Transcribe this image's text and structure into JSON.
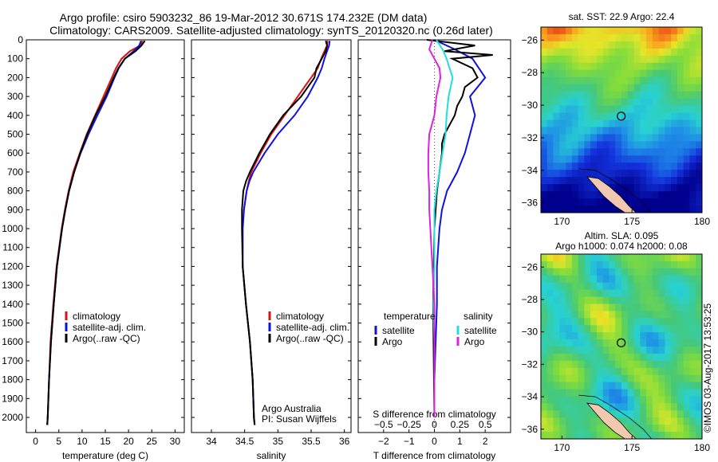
{
  "header": {
    "line1": "Argo profile: csiro 5903232_86 19-Mar-2012 30.671S 174.232E (DM data)",
    "line2": "Climatology: CARS2009. Satellite-adjusted climatology: synTS_20120320.nc (0.26d later)"
  },
  "side_text": "©IMOS 03-Aug-2017 13:53:25",
  "credit": {
    "line1": "Argo Australia",
    "line2": "PI: Susan Wijffels"
  },
  "colors": {
    "climatology": "#dd1111",
    "satellite": "#1111dd",
    "argo": "#000000",
    "sal_sat": "#22dddd",
    "sal_argo": "#dd22dd",
    "dotted_zero": "#555555"
  },
  "chart_data": [
    {
      "type": "line",
      "xlabel": "temperature (deg C)",
      "ylabel": "",
      "xlim": [
        -2,
        32
      ],
      "ylim": [
        2080,
        0
      ],
      "xticks": [
        0,
        5,
        10,
        15,
        20,
        25,
        30
      ],
      "yticks": [
        0,
        100,
        200,
        300,
        400,
        500,
        600,
        700,
        800,
        900,
        1000,
        1100,
        1200,
        1300,
        1400,
        1500,
        1600,
        1700,
        1800,
        1900,
        2000
      ],
      "legend": [
        "climatology",
        "satellite-adj. clim.",
        "Argo(..raw -QC)"
      ],
      "legend_position": "middle",
      "series": [
        {
          "name": "climatology",
          "depth": [
            5,
            30,
            60,
            100,
            150,
            200,
            300,
            400,
            500,
            600,
            700,
            800,
            900,
            1000,
            1200,
            1400,
            1600,
            1800,
            2000,
            2040
          ],
          "values": [
            23.0,
            22.5,
            20.3,
            18.5,
            17.3,
            16.4,
            14.6,
            12.8,
            11.0,
            9.5,
            8.1,
            7.1,
            6.3,
            5.6,
            4.5,
            3.8,
            3.2,
            2.9,
            2.6,
            2.5
          ]
        },
        {
          "name": "satellite-adj. clim.",
          "depth": [
            5,
            30,
            60,
            100,
            150,
            200,
            300,
            400,
            500,
            600,
            700,
            800,
            900,
            1000,
            1200,
            1400,
            1600,
            1800,
            2000,
            2040
          ],
          "values": [
            22.7,
            22.3,
            21.1,
            19.2,
            17.9,
            17.0,
            15.3,
            13.3,
            11.4,
            9.7,
            8.3,
            7.2,
            6.4,
            5.7,
            4.6,
            3.9,
            3.3,
            2.9,
            2.6,
            2.5
          ]
        },
        {
          "name": "Argo(..raw -QC)",
          "depth": [
            5,
            30,
            60,
            100,
            150,
            200,
            300,
            400,
            500,
            600,
            700,
            800,
            900,
            1000,
            1200,
            1400,
            1600,
            1800,
            2000,
            2040
          ],
          "values": [
            23.5,
            22.8,
            21.5,
            19.2,
            17.8,
            16.8,
            15.0,
            12.9,
            11.1,
            9.6,
            8.3,
            7.2,
            6.4,
            5.7,
            4.6,
            3.9,
            3.3,
            2.9,
            2.6,
            2.5
          ]
        }
      ]
    },
    {
      "type": "line",
      "xlabel": "salinity",
      "ylabel": "",
      "xlim": [
        33.7,
        36.1
      ],
      "ylim": [
        2080,
        0
      ],
      "xticks": [
        34,
        34.5,
        35,
        35.5,
        36
      ],
      "legend": [
        "climatology",
        "satellite-adj. clim.",
        "Argo(..raw -QC)"
      ],
      "legend_position": "middle",
      "series": [
        {
          "name": "climatology",
          "depth": [
            5,
            30,
            60,
            100,
            150,
            200,
            300,
            400,
            500,
            600,
            700,
            750,
            800,
            900,
            1000,
            1200,
            1400,
            1600,
            1800,
            2000,
            2040
          ],
          "values": [
            35.75,
            35.74,
            35.7,
            35.65,
            35.6,
            35.5,
            35.3,
            35.1,
            34.9,
            34.74,
            34.6,
            34.56,
            34.53,
            34.49,
            34.47,
            34.47,
            34.52,
            34.58,
            34.62,
            34.64,
            34.65
          ]
        },
        {
          "name": "satellite-adj. clim.",
          "depth": [
            5,
            30,
            60,
            100,
            150,
            200,
            300,
            400,
            500,
            600,
            700,
            750,
            800,
            900,
            1000,
            1200,
            1400,
            1600,
            1800,
            2000,
            2040
          ],
          "values": [
            35.78,
            35.77,
            35.74,
            35.7,
            35.66,
            35.6,
            35.45,
            35.25,
            35.0,
            34.8,
            34.63,
            34.57,
            34.53,
            34.49,
            34.47,
            34.47,
            34.52,
            34.58,
            34.62,
            34.64,
            34.65
          ]
        },
        {
          "name": "Argo(..raw -QC)",
          "depth": [
            5,
            30,
            60,
            100,
            150,
            200,
            300,
            400,
            500,
            600,
            700,
            750,
            800,
            900,
            1000,
            1200,
            1400,
            1600,
            1800,
            2000,
            2040
          ],
          "values": [
            35.72,
            35.74,
            35.72,
            35.66,
            35.58,
            35.55,
            35.35,
            35.08,
            34.88,
            34.72,
            34.58,
            34.52,
            34.48,
            34.46,
            34.46,
            34.47,
            34.52,
            34.58,
            34.62,
            34.64,
            34.65
          ]
        }
      ]
    },
    {
      "type": "line",
      "xlabel": "T difference from climatology",
      "xlabel_top": "S difference from climatology",
      "xlim": [
        -3,
        3
      ],
      "ylim": [
        2080,
        0
      ],
      "xticks_T": [
        -2,
        -1,
        0,
        1,
        2
      ],
      "xticks_S": [
        -0.5,
        -0.25,
        0,
        0.25,
        0.5
      ],
      "legend_temperature": {
        "title": "temperature",
        "items": [
          "satellite",
          "Argo"
        ]
      },
      "legend_salinity": {
        "title": "salinity",
        "items": [
          "satellite",
          "Argo"
        ]
      },
      "series": [
        {
          "name": "temperature satellite",
          "depth": [
            0,
            50,
            100,
            200,
            300,
            400,
            500,
            600,
            700,
            800,
            900,
            1000,
            1200,
            1400,
            1600,
            1800,
            2000
          ],
          "values": [
            0.0,
            0.8,
            1.5,
            2.0,
            1.4,
            1.6,
            1.4,
            1.2,
            0.9,
            0.5,
            0.3,
            0.2,
            0.1,
            0.1,
            0.05,
            0.0,
            0.0
          ]
        },
        {
          "name": "temperature Argo",
          "depth": [
            0,
            30,
            60,
            80,
            100,
            150,
            200,
            250,
            300,
            350,
            400,
            450,
            500,
            550,
            600,
            700,
            800,
            1000,
            1400,
            2000
          ],
          "values": [
            -0.3,
            1.6,
            0.4,
            2.3,
            0.7,
            1.5,
            1.7,
            1.2,
            1.1,
            0.9,
            0.8,
            0.6,
            0.4,
            0.3,
            0.3,
            0.2,
            0.1,
            0.0,
            -0.05,
            0.0
          ]
        },
        {
          "name": "salinity satellite",
          "depth": [
            0,
            50,
            100,
            200,
            300,
            400,
            500,
            600,
            700,
            800,
            900,
            1000,
            1200,
            1400,
            1600,
            1800,
            2000
          ],
          "values": [
            0.02,
            0.08,
            0.12,
            0.18,
            0.14,
            0.12,
            0.11,
            0.08,
            0.05,
            0.02,
            0.0,
            0.0,
            0.0,
            -0.01,
            0.0,
            0.0,
            0.0
          ]
        },
        {
          "name": "salinity Argo",
          "depth": [
            0,
            50,
            100,
            150,
            200,
            300,
            400,
            500,
            600,
            700,
            800,
            900,
            1000,
            1100,
            1200,
            1400,
            1600,
            2000
          ],
          "values": [
            -0.02,
            -0.05,
            0.0,
            0.05,
            0.06,
            0.02,
            0.0,
            -0.05,
            -0.06,
            -0.06,
            -0.05,
            -0.05,
            -0.04,
            -0.03,
            -0.02,
            0.0,
            0.0,
            0.0
          ]
        }
      ]
    },
    {
      "type": "heatmap",
      "title": "sat. SST: 22.9  Argo: 22.4",
      "xlim": [
        168.5,
        180
      ],
      "ylim": [
        -36.6,
        -25.2
      ],
      "xticks": [
        170,
        175,
        180
      ],
      "yticks": [
        -26,
        -28,
        -30,
        -32,
        -34,
        -36
      ],
      "marker": {
        "lon": 174.232,
        "lat": -30.671
      }
    },
    {
      "type": "heatmap",
      "title": "Altim. SLA: 0.095",
      "subtitle": "Argo h1000: 0.074 h2000: 0.08",
      "xlim": [
        168.5,
        180
      ],
      "ylim": [
        -36.6,
        -25.2
      ],
      "xticks": [
        170,
        175,
        180
      ],
      "yticks": [
        -26,
        -28,
        -30,
        -32,
        -34,
        -36
      ],
      "marker": {
        "lon": 174.232,
        "lat": -30.671
      }
    }
  ]
}
